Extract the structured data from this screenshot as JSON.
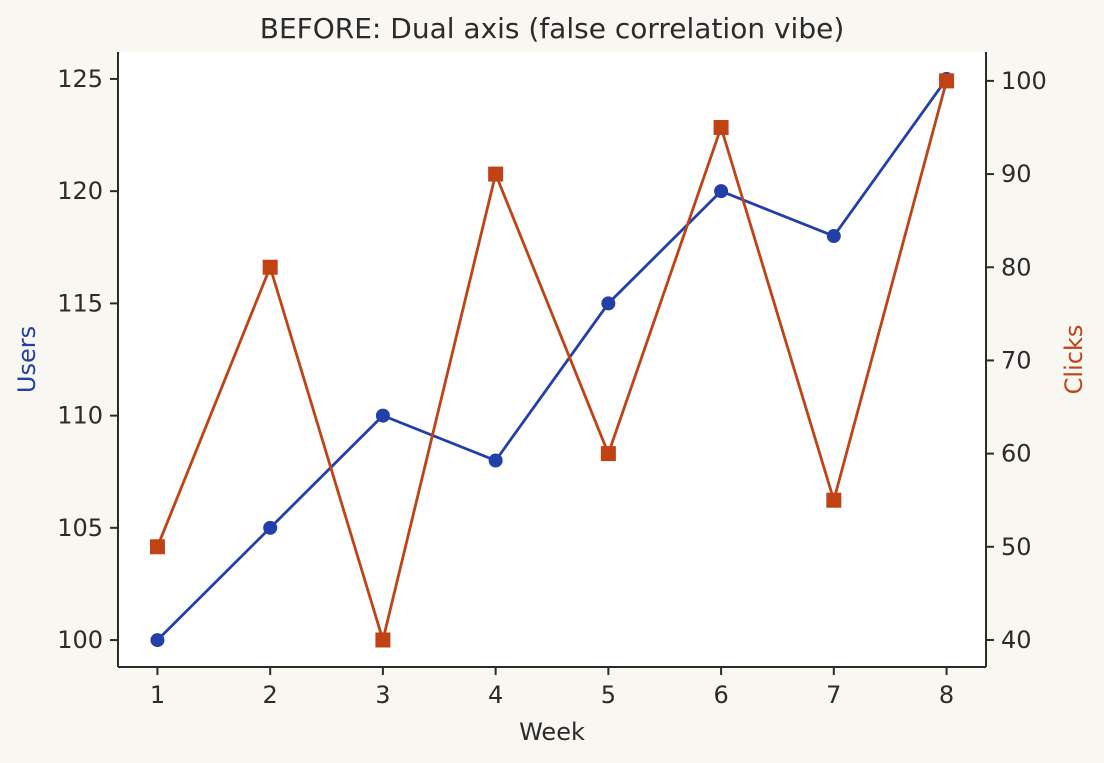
{
  "chart_data": {
    "type": "line",
    "title": "BEFORE: Dual axis (false correlation vibe)",
    "xlabel": "Week",
    "x": [
      1,
      2,
      3,
      4,
      5,
      6,
      7,
      8
    ],
    "xlim": [
      0.65,
      8.35
    ],
    "y_left": {
      "label": "Users",
      "color": "#2340a8",
      "ticks": [
        100,
        105,
        110,
        115,
        120,
        125
      ],
      "lim": [
        98.8,
        126.2
      ]
    },
    "y_right": {
      "label": "Clicks",
      "color": "#bf4315",
      "ticks": [
        40,
        50,
        60,
        70,
        80,
        90,
        100
      ],
      "lim": [
        37.1,
        103.1
      ]
    },
    "series": [
      {
        "name": "Users",
        "axis": "left",
        "marker": "circle",
        "color": "#2340a8",
        "values": [
          100,
          105,
          110,
          108,
          115,
          120,
          118,
          125
        ]
      },
      {
        "name": "Clicks",
        "axis": "right",
        "marker": "square",
        "color": "#bf4315",
        "values": [
          50,
          80,
          40,
          90,
          60,
          95,
          55,
          100
        ]
      }
    ],
    "grid": false,
    "legend": "none"
  }
}
